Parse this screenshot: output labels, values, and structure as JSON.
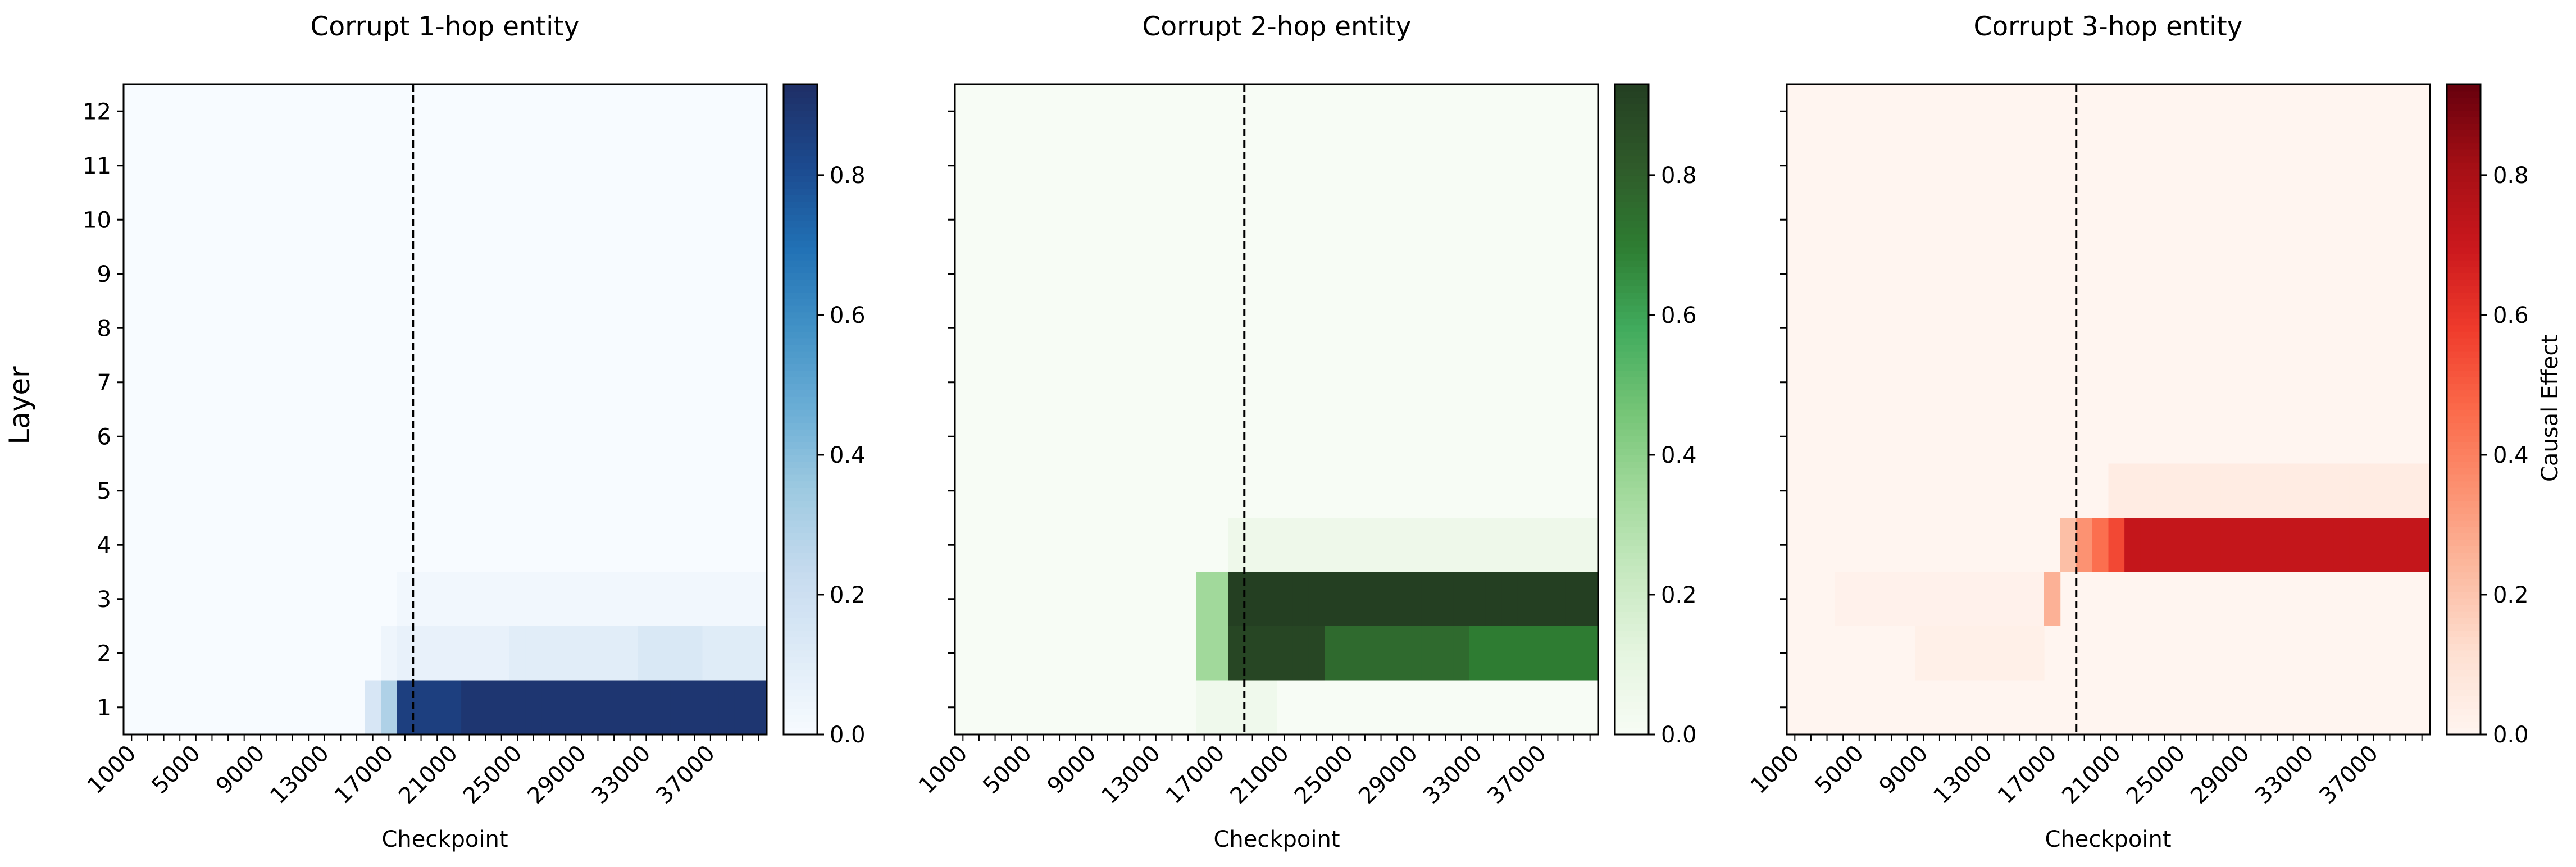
{
  "chart_data": {
    "type": "heatmap",
    "ylabel": "Layer",
    "yticks": [
      "1",
      "2",
      "3",
      "4",
      "5",
      "6",
      "7",
      "8",
      "9",
      "10",
      "11",
      "12"
    ],
    "x_start": 1000,
    "x_step": 1000,
    "x_count": 40,
    "xtick_labels": [
      "1000",
      "5000",
      "9000",
      "13000",
      "17000",
      "21000",
      "25000",
      "29000",
      "33000",
      "37000"
    ],
    "xlabel": "Checkpoint",
    "vline_checkpoint": 18500,
    "colorbar_ticks": [
      "0.0",
      "0.2",
      "0.4",
      "0.6",
      "0.8"
    ],
    "vmin": 0.0,
    "vmax": 0.93,
    "colorbar_label": "Causal Effect",
    "panels": [
      {
        "title": "Corrupt 1-hop entity",
        "colormap": "Blues",
        "cells": [
          {
            "layer": 1,
            "from": 15,
            "to": 15,
            "value": 0.15
          },
          {
            "layer": 1,
            "from": 16,
            "to": 16,
            "value": 0.3
          },
          {
            "layer": 1,
            "from": 17,
            "to": 20,
            "value": 0.86
          },
          {
            "layer": 1,
            "from": 21,
            "to": 39,
            "value": 0.9
          },
          {
            "layer": 2,
            "from": 16,
            "to": 16,
            "value": 0.04
          },
          {
            "layer": 2,
            "from": 17,
            "to": 23,
            "value": 0.07
          },
          {
            "layer": 2,
            "from": 24,
            "to": 31,
            "value": 0.1
          },
          {
            "layer": 2,
            "from": 32,
            "to": 35,
            "value": 0.14
          },
          {
            "layer": 2,
            "from": 36,
            "to": 39,
            "value": 0.11
          },
          {
            "layer": 3,
            "from": 17,
            "to": 39,
            "value": 0.03
          }
        ]
      },
      {
        "title": "Corrupt 2-hop entity",
        "colormap": "Greens",
        "cells": [
          {
            "layer": 1,
            "from": 15,
            "to": 19,
            "value": 0.05
          },
          {
            "layer": 2,
            "from": 15,
            "to": 16,
            "value": 0.35
          },
          {
            "layer": 2,
            "from": 17,
            "to": 22,
            "value": 0.9
          },
          {
            "layer": 2,
            "from": 23,
            "to": 31,
            "value": 0.76
          },
          {
            "layer": 2,
            "from": 32,
            "to": 39,
            "value": 0.7
          },
          {
            "layer": 3,
            "from": 15,
            "to": 16,
            "value": 0.35
          },
          {
            "layer": 3,
            "from": 17,
            "to": 39,
            "value": 0.93
          },
          {
            "layer": 4,
            "from": 17,
            "to": 39,
            "value": 0.06
          }
        ]
      },
      {
        "title": "Corrupt 3-hop entity",
        "colormap": "Reds",
        "cells": [
          {
            "layer": 2,
            "from": 8,
            "to": 15,
            "value": 0.03
          },
          {
            "layer": 3,
            "from": 3,
            "to": 15,
            "value": 0.02
          },
          {
            "layer": 3,
            "from": 16,
            "to": 16,
            "value": 0.26
          },
          {
            "layer": 4,
            "from": 17,
            "to": 17,
            "value": 0.22
          },
          {
            "layer": 4,
            "from": 18,
            "to": 18,
            "value": 0.35
          },
          {
            "layer": 4,
            "from": 19,
            "to": 19,
            "value": 0.45
          },
          {
            "layer": 4,
            "from": 20,
            "to": 20,
            "value": 0.55
          },
          {
            "layer": 4,
            "from": 21,
            "to": 39,
            "value": 0.72
          },
          {
            "layer": 5,
            "from": 20,
            "to": 39,
            "value": 0.05
          }
        ]
      }
    ]
  }
}
